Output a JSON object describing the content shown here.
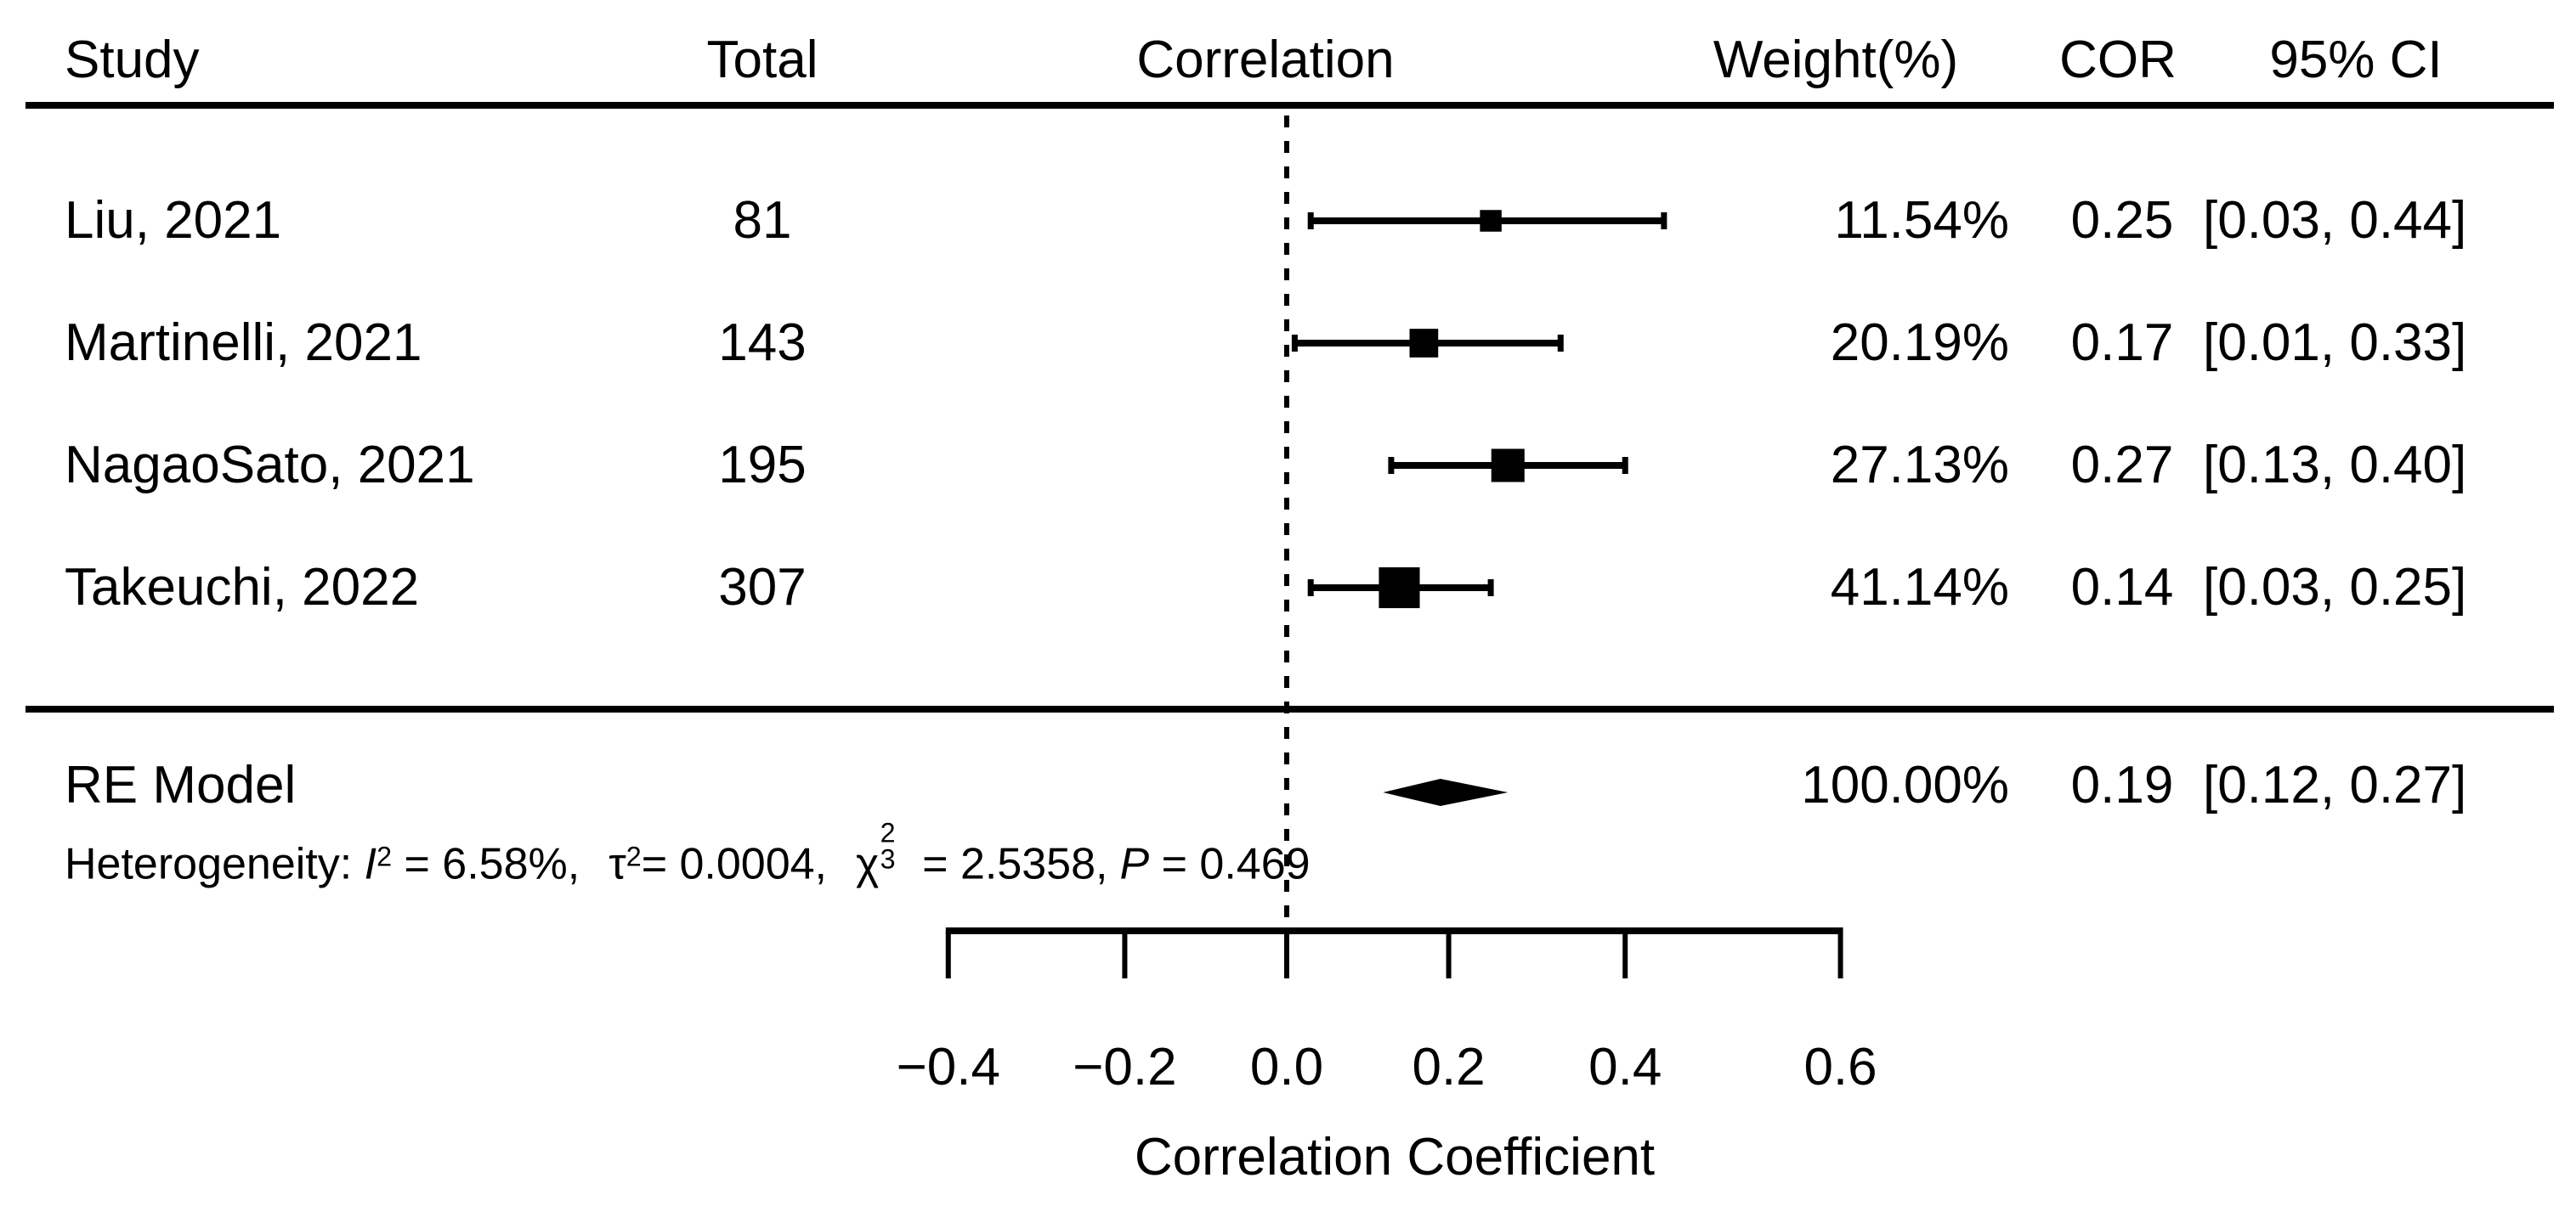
{
  "figure": {
    "background_color": "#ffffff",
    "ink_color": "#000000"
  },
  "columns": {
    "study": "Study",
    "total": "Total",
    "correlation": "Correlation",
    "weight": "Weight(%)",
    "cor": "COR",
    "ci": "95% CI"
  },
  "heterogeneity": {
    "prefix": "Heterogeneity: ",
    "i_sym": "I",
    "i_sup": "2",
    "i_val": " = 6.58%,",
    "tau_sym": "τ",
    "tau_sup": "2",
    "tau_val": "= 0.0004,",
    "chi_sym": "χ",
    "chi_sup": "2",
    "chi_sub": "3",
    "chi_val": " = 2.5358,",
    "p_sym": "P",
    "p_val": " = 0.469"
  },
  "chart_data": {
    "type": "forest",
    "effect_measure": "correlation",
    "x_scale": "fisher_z",
    "axis": {
      "label": "Correlation Coefficient",
      "zero_reference": 0.0,
      "range_r": [
        -0.4,
        0.6
      ],
      "ticks": [
        {
          "value": -0.4,
          "label": "−0.4"
        },
        {
          "value": -0.2,
          "label": "−0.2"
        },
        {
          "value": 0.0,
          "label": "0.0"
        },
        {
          "value": 0.2,
          "label": "0.2"
        },
        {
          "value": 0.4,
          "label": "0.4"
        },
        {
          "value": 0.6,
          "label": "0.6"
        }
      ]
    },
    "studies": [
      {
        "study": "Liu, 2021",
        "total": "81",
        "weight": "11.54%",
        "weight_pct": 11.54,
        "cor": 0.25,
        "ci_low": 0.03,
        "ci_high": 0.44,
        "cor_label": "0.25",
        "ci_label": "[0.03, 0.44]"
      },
      {
        "study": "Martinelli, 2021",
        "total": "143",
        "weight": "20.19%",
        "weight_pct": 20.19,
        "cor": 0.17,
        "ci_low": 0.01,
        "ci_high": 0.33,
        "cor_label": "0.17",
        "ci_label": "[0.01, 0.33]"
      },
      {
        "study": "NagaoSato, 2021",
        "total": "195",
        "weight": "27.13%",
        "weight_pct": 27.13,
        "cor": 0.27,
        "ci_low": 0.13,
        "ci_high": 0.4,
        "cor_label": "0.27",
        "ci_label": "[0.13, 0.40]"
      },
      {
        "study": "Takeuchi, 2022",
        "total": "307",
        "weight": "41.14%",
        "weight_pct": 41.14,
        "cor": 0.14,
        "ci_low": 0.03,
        "ci_high": 0.25,
        "cor_label": "0.14",
        "ci_label": "[0.03, 0.25]"
      }
    ],
    "summary": {
      "label": "RE Model",
      "weight": "100.00%",
      "weight_pct": 100.0,
      "cor": 0.19,
      "ci_low": 0.12,
      "ci_high": 0.27,
      "cor_label": "0.19",
      "ci_label": "[0.12, 0.27]"
    }
  }
}
